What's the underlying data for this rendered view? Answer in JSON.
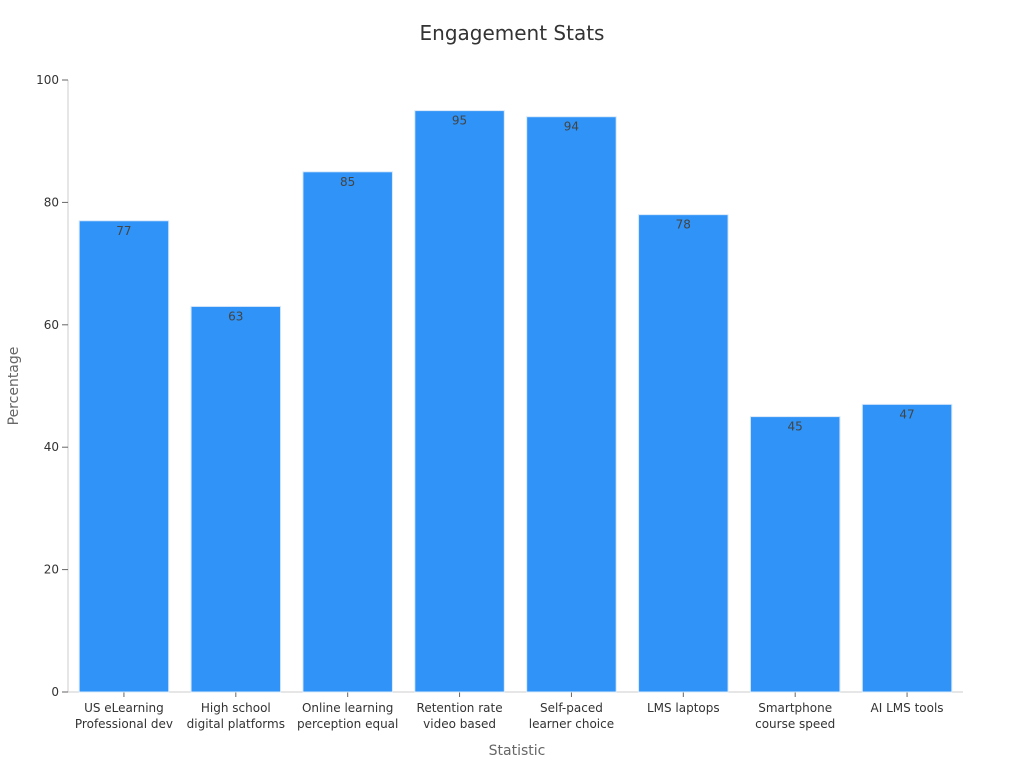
{
  "chart_data": {
    "type": "bar",
    "title": "Engagement Stats",
    "xlabel": "Statistic",
    "ylabel": "Percentage",
    "ylim": [
      0,
      100
    ],
    "yticks": [
      0,
      20,
      40,
      60,
      80,
      100
    ],
    "grid": false,
    "legend": "none",
    "bar_color": "#2f93f7",
    "categories": [
      [
        "US eLearning",
        "Professional dev"
      ],
      [
        "High school",
        "digital platforms"
      ],
      [
        "Online learning",
        "perception equal"
      ],
      [
        "Retention rate",
        "video based"
      ],
      [
        "Self-paced",
        "learner choice"
      ],
      [
        "LMS laptops"
      ],
      [
        "Smartphone",
        "course speed"
      ],
      [
        "AI LMS tools"
      ]
    ],
    "values": [
      77,
      63,
      85,
      95,
      94,
      78,
      45,
      47
    ]
  }
}
